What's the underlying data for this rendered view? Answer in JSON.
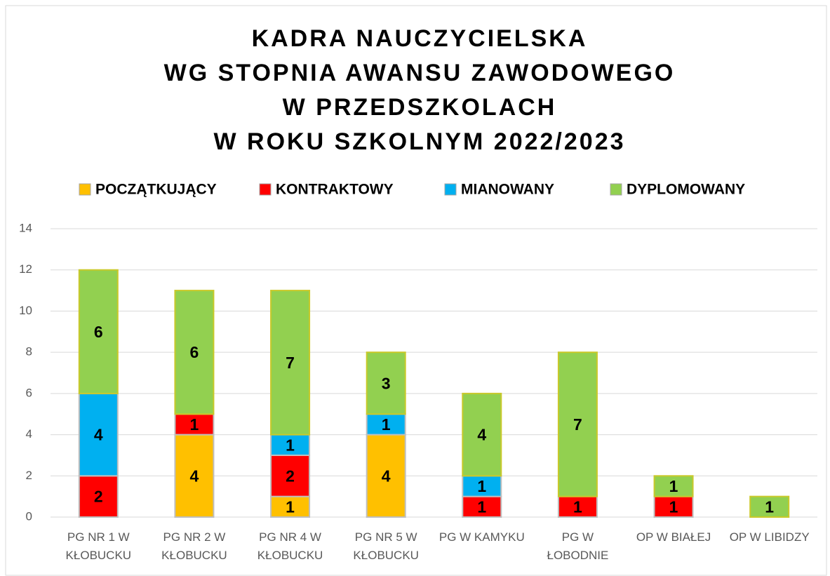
{
  "chart_data": {
    "type": "stacked_bar",
    "title": [
      "KADRA NAUCZYCIELSKA",
      "WG STOPNIA AWANSU ZAWODOWEGO",
      "W PRZEDSZKOLACH",
      "W ROKU SZKOLNYM 2022/2023"
    ],
    "categories": [
      "PG NR 1 W KŁOBUCKU",
      "PG NR 2 W KŁOBUCKU",
      "PG NR 4 W KŁOBUCKU",
      "PG NR 5 W KŁOBUCKU",
      "PG W KAMYKU",
      "PG W ŁOBODNIE",
      "OP W BIAŁEJ",
      "OP W LIBIDZY"
    ],
    "series": [
      {
        "name": "POCZĄTKUJĄCY",
        "color": "#ffc000",
        "values": [
          0,
          4,
          1,
          4,
          0,
          0,
          0,
          0
        ]
      },
      {
        "name": "KONTRAKTOWY",
        "color": "#ff0000",
        "values": [
          2,
          1,
          2,
          0,
          1,
          1,
          1,
          0
        ]
      },
      {
        "name": "MIANOWANY",
        "color": "#00b0f0",
        "values": [
          4,
          0,
          1,
          1,
          1,
          0,
          0,
          0
        ]
      },
      {
        "name": "DYPLOMOWANY",
        "color": "#92d050",
        "values": [
          6,
          6,
          7,
          3,
          4,
          7,
          1,
          1
        ]
      }
    ],
    "ylim": [
      0,
      14
    ],
    "yticks": [
      0,
      2,
      4,
      6,
      8,
      10,
      12,
      14
    ],
    "grid": true,
    "legend": "top"
  }
}
